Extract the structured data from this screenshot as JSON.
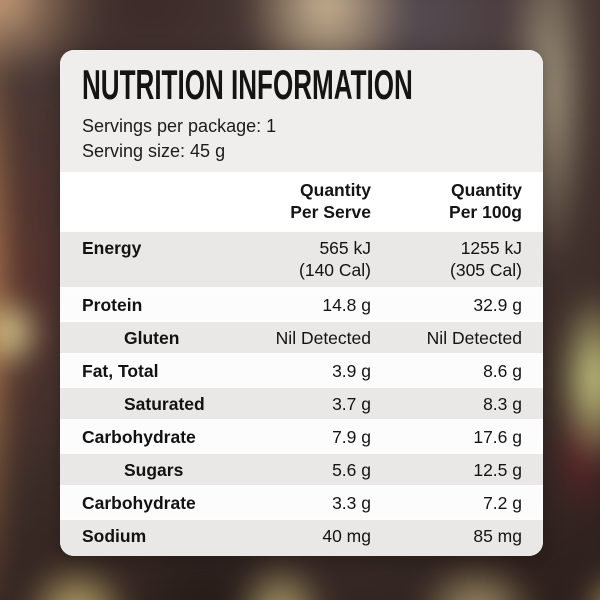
{
  "card": {
    "title": "NUTRITION INFORMATION",
    "servings_per_package": "Servings per package: 1",
    "serving_size": "Serving size: 45 g"
  },
  "table": {
    "headers": {
      "per_serve": "Quantity\nPer Serve",
      "per_100g": "Quantity\nPer 100g"
    },
    "rows": [
      {
        "label": "Energy",
        "per_serve": "565 kJ\n(140 Cal)",
        "per_100g": "1255 kJ\n(305 Cal)"
      },
      {
        "label": "Protein",
        "per_serve": "14.8 g",
        "per_100g": "32.9 g"
      },
      {
        "label": "Gluten",
        "per_serve": "Nil Detected",
        "per_100g": "Nil Detected"
      },
      {
        "label": "Fat, Total",
        "per_serve": "3.9 g",
        "per_100g": "8.6 g"
      },
      {
        "label": "Saturated",
        "per_serve": "3.7 g",
        "per_100g": "8.3 g"
      },
      {
        "label": "Carbohydrate",
        "per_serve": "7.9 g",
        "per_100g": "17.6 g"
      },
      {
        "label": "Sugars",
        "per_serve": "5.6 g",
        "per_100g": "12.5 g"
      },
      {
        "label": "Carbohydrate",
        "per_serve": "3.3 g",
        "per_100g": "7.2 g"
      },
      {
        "label": "Sodium",
        "per_serve": "40 mg",
        "per_100g": "85 mg"
      }
    ]
  },
  "colors": {
    "row_shade": "#e9e8e6",
    "row_white": "#fcfcfc",
    "card_top_bg": "#efeeec",
    "card_bg": "#fdfdfd",
    "text": "#121212"
  }
}
